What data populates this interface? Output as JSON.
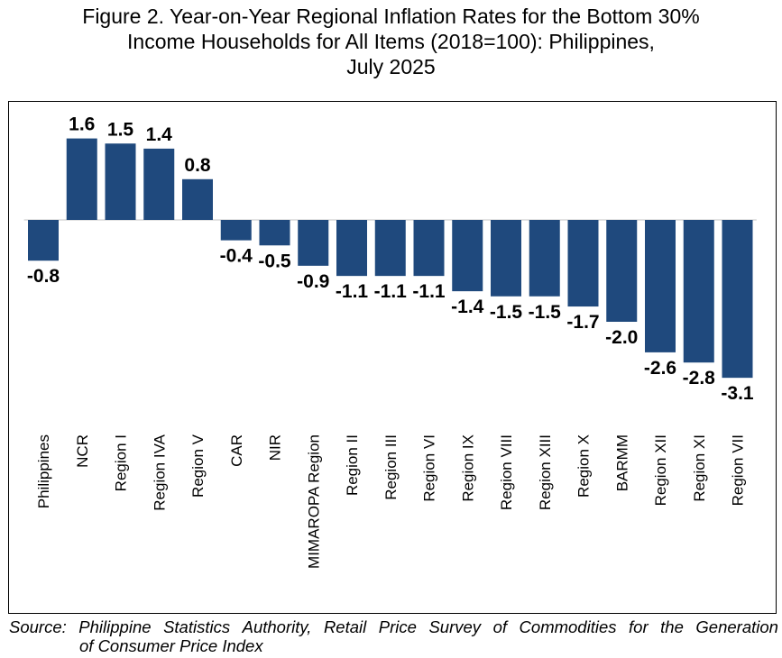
{
  "title_lines": [
    "Figure 2. Year-on-Year Regional Inflation Rates for the Bottom 30%",
    "Income Households for All Items (2018=100): Philippines,",
    "July 2025"
  ],
  "source": {
    "words": [
      "Source:",
      "Philippine",
      "Statistics",
      "Authority,",
      "Retail",
      "Price",
      "Survey",
      "of",
      "Commodities",
      "for",
      "the",
      "Generation"
    ],
    "line2": "of Consumer Price Index"
  },
  "chart_data": {
    "type": "bar",
    "title": "Figure 2. Year-on-Year Regional Inflation Rates for the Bottom 30% Income Households for All Items (2018=100): Philippines, July 2025",
    "categories": [
      "Philippines",
      "NCR",
      "Region I",
      "Region IVA",
      "Region V",
      "CAR",
      "NIR",
      "MIMAROPA Region",
      "Region II",
      "Region III",
      "Region VI",
      "Region IX",
      "Region VIII",
      "Region XIII",
      "Region X",
      "BARMM",
      "Region XII",
      "Region XI",
      "Region VII"
    ],
    "values": [
      -0.8,
      1.6,
      1.5,
      1.4,
      0.8,
      -0.4,
      -0.5,
      -0.9,
      -1.1,
      -1.1,
      -1.1,
      -1.4,
      -1.5,
      -1.5,
      -1.7,
      -2.0,
      -2.6,
      -2.8,
      -3.1
    ],
    "data_labels": [
      "-0.8",
      "1.6",
      "1.5",
      "1.4",
      "0.8",
      "-0.4",
      "-0.5",
      "-0.9",
      "-1.1",
      "-1.1",
      "-1.1",
      "-1.4",
      "-1.5",
      "-1.5",
      "-1.7",
      "-2.0",
      "-2.6",
      "-2.8",
      "-3.1"
    ],
    "xlabel": "",
    "ylabel": "",
    "grid": false,
    "legend": false,
    "bar_color": "#1f497d",
    "zero_line_color": "#d9d9d9"
  }
}
